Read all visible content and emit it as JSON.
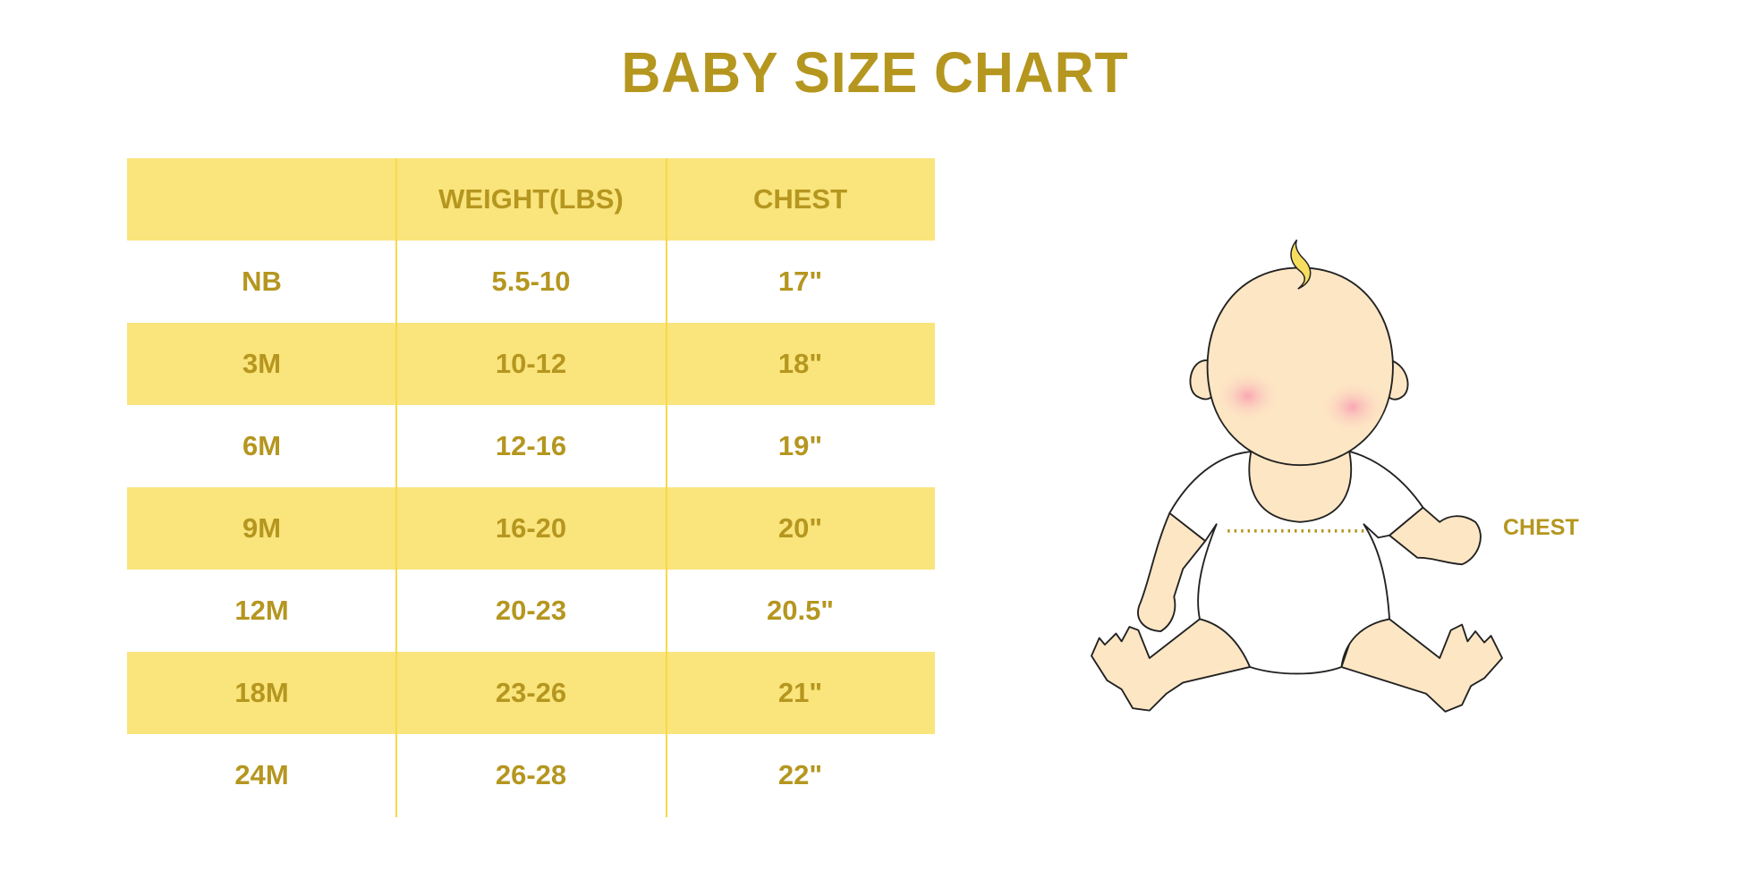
{
  "title": "BABY SIZE CHART",
  "table": {
    "headers": [
      "",
      "WEIGHT(LBS)",
      "CHEST"
    ],
    "rows": [
      [
        "NB",
        "5.5-10",
        "17\""
      ],
      [
        "3M",
        "10-12",
        "18\""
      ],
      [
        "6M",
        "12-16",
        "19\""
      ],
      [
        "9M",
        "16-20",
        "20\""
      ],
      [
        "12M",
        "20-23",
        "20.5\""
      ],
      [
        "18M",
        "23-26",
        "21\""
      ],
      [
        "24M",
        "26-28",
        "22\""
      ]
    ]
  },
  "illustration": {
    "chest_label": "CHEST"
  },
  "colors": {
    "text": "#b5961f",
    "band": "#fae47c",
    "divider": "#f7d94a"
  }
}
